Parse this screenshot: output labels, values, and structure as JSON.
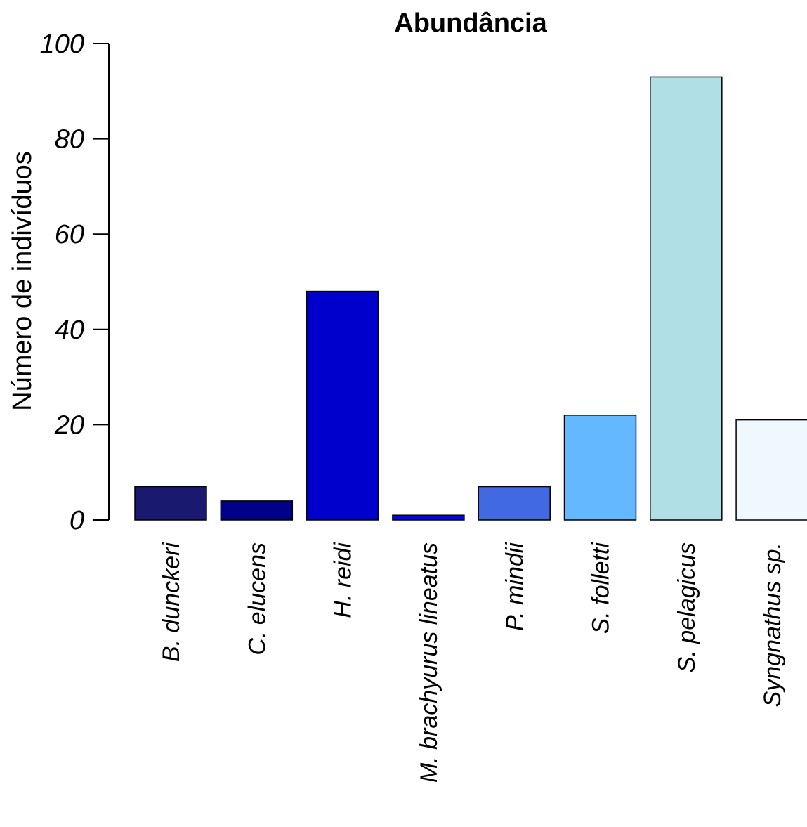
{
  "chart_data": {
    "type": "bar",
    "title": "Abundância",
    "xlabel": "",
    "ylabel": "Número de indivíduos",
    "ylim": [
      0,
      100
    ],
    "yticks": [
      0,
      20,
      40,
      60,
      80,
      100
    ],
    "grid": false,
    "categories": [
      "B. dunckeri",
      "C. elucens",
      "H. reidi",
      "M. brachyurus lineatus",
      "P. mindii",
      "S. folletti",
      "S. pelagicus",
      "Syngnathus sp."
    ],
    "values": [
      7,
      4,
      48,
      1,
      7,
      22,
      93,
      21
    ],
    "colors": [
      "#191970",
      "#00008B",
      "#0000CD",
      "#0000FF",
      "#4169E1",
      "#63B8FF",
      "#B0E0E6",
      "#F0F8FF"
    ]
  }
}
